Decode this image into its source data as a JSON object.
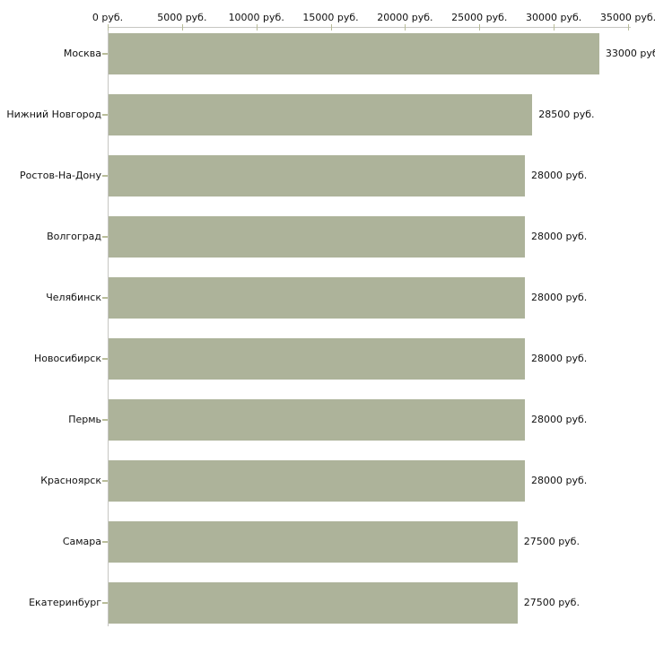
{
  "chart_data": {
    "type": "bar",
    "orientation": "horizontal",
    "title": "",
    "xlabel": "",
    "ylabel": "",
    "xlim": [
      0,
      35000
    ],
    "grid": false,
    "legend": null,
    "x_tick_values": [
      0,
      5000,
      10000,
      15000,
      20000,
      25000,
      30000,
      35000
    ],
    "x_tick_labels": [
      "0 руб.",
      "5000 руб.",
      "10000 руб.",
      "15000 руб.",
      "20000 руб.",
      "25000 руб.",
      "30000 руб.",
      "35000 руб."
    ],
    "categories": [
      "Москва",
      "Нижний Новгород",
      "Ростов-На-Дону",
      "Волгоград",
      "Челябинск",
      "Новосибирск",
      "Пермь",
      "Красноярск",
      "Самара",
      "Екатеринбург"
    ],
    "values": [
      33000,
      28500,
      28000,
      28000,
      28000,
      28000,
      28000,
      28000,
      27500,
      27500
    ],
    "value_labels": [
      "33000 руб",
      "28500 руб.",
      "28000 руб.",
      "28000 руб.",
      "28000 руб.",
      "28000 руб.",
      "28000 руб.",
      "28000 руб.",
      "27500 руб.",
      "27500 руб."
    ],
    "colors": {
      "bar": "#adb39a",
      "axis_line": "#c6c6c2",
      "tick_mark": "#b9bd9a",
      "text": "#111111",
      "background": "#ffffff"
    }
  }
}
